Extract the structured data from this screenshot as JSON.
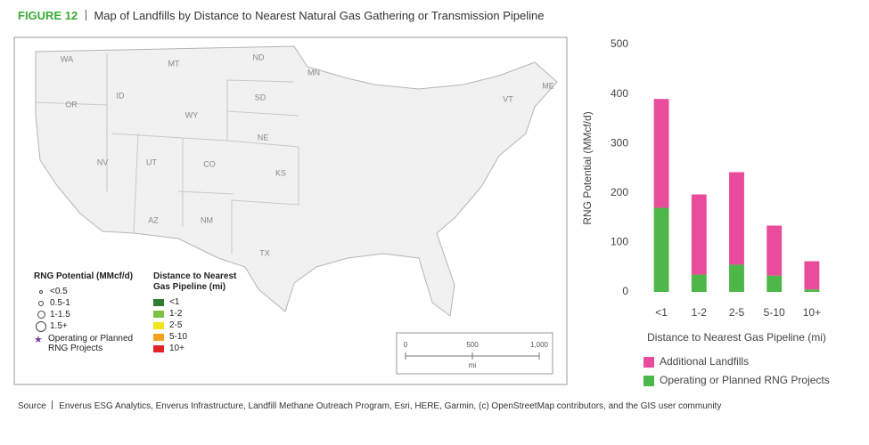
{
  "figure_label": "FIGURE 12",
  "title": "Map of Landfills by Distance to Nearest Natural Gas Gathering or Transmission Pipeline",
  "map": {
    "state_labels": [
      "WA",
      "MT",
      "ND",
      "MN",
      "OR",
      "ID",
      "WY",
      "SD",
      "NE",
      "NV",
      "UT",
      "CO",
      "KS",
      "AZ",
      "NM",
      "TX",
      "VT",
      "ME"
    ],
    "size_legend": {
      "title": "RNG Potential (MMcf/d)",
      "items": [
        "<0.5",
        "0.5-1",
        "1-1.5",
        "1.5+"
      ],
      "star_label": "Operating or Planned RNG Projects"
    },
    "color_legend": {
      "title": "Distance to Nearest Gas Pipeline (mi)",
      "items": [
        {
          "label": "<1",
          "color": "#2e7d32"
        },
        {
          "label": "1-2",
          "color": "#7cc242"
        },
        {
          "label": "2-5",
          "color": "#f2e51b"
        },
        {
          "label": "5-10",
          "color": "#f7a21b"
        },
        {
          "label": "10+",
          "color": "#e32227"
        }
      ]
    },
    "scale_bar": {
      "labels": [
        "0",
        "500",
        "1,000"
      ],
      "unit": "mi"
    }
  },
  "chart_data": {
    "type": "bar",
    "stacked": true,
    "y_label": "RNG Potential (MMcf/d)",
    "x_label": "Distance to Nearest Gas Pipeline (mi)",
    "categories": [
      "<1",
      "1-2",
      "2-5",
      "5-10",
      "10+"
    ],
    "series": [
      {
        "name": "Operating or Planned RNG Projects",
        "color": "#4db848",
        "values": [
          170,
          35,
          55,
          33,
          5
        ]
      },
      {
        "name": "Additional Landfills",
        "color": "#ea4c9c",
        "values": [
          220,
          162,
          187,
          101,
          57
        ]
      }
    ],
    "ylim": [
      0,
      500
    ],
    "yticks": [
      0,
      100,
      200,
      300,
      400,
      500
    ],
    "grid": false
  },
  "source_label": "Source",
  "source": "Enverus ESG Analytics, Enverus Infrastructure, Landfill Methane Outreach Program,  Esri, HERE, Garmin, (c) OpenStreetMap contributors, and the GIS user community"
}
